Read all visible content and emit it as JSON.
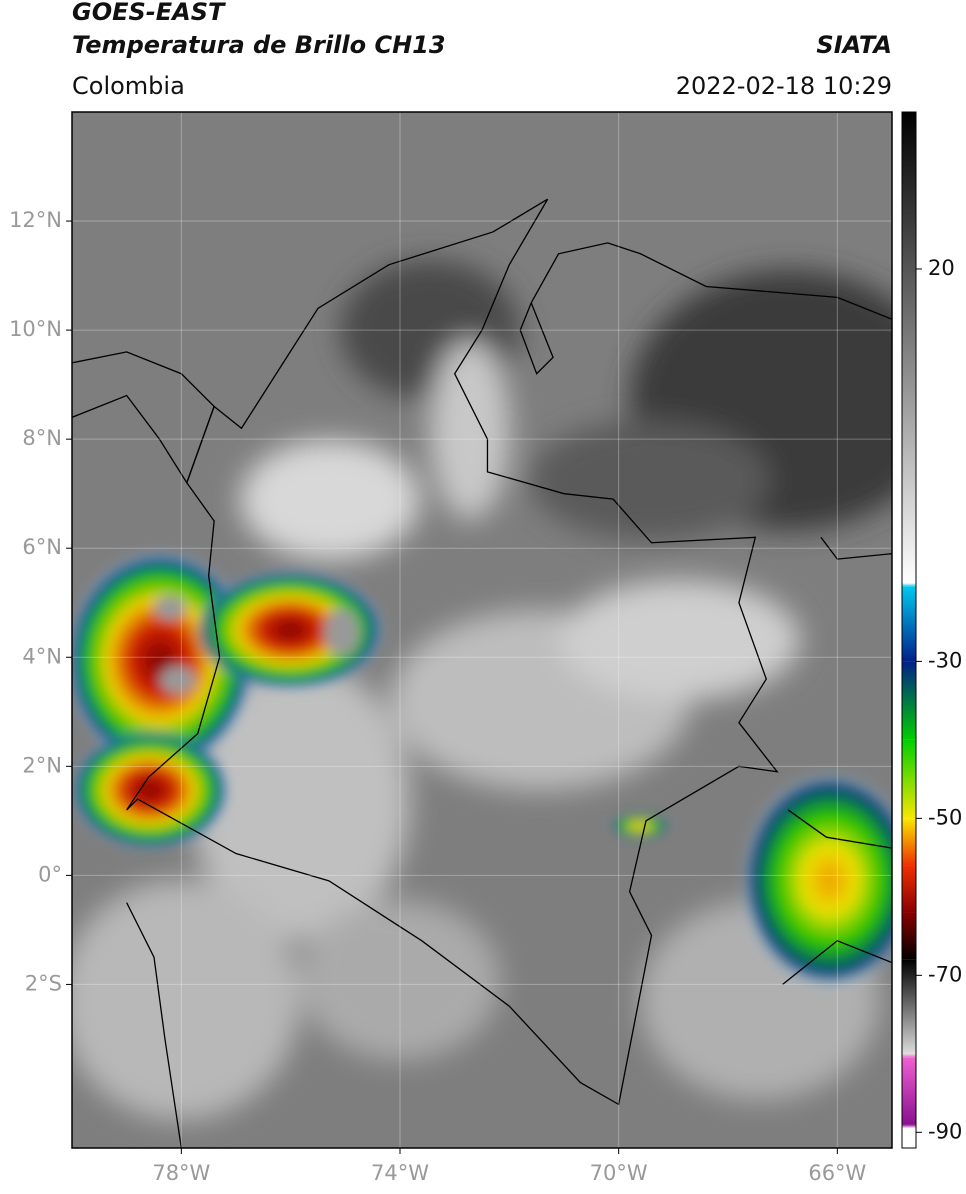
{
  "header": {
    "title_line1": "GOES-EAST",
    "title_line2": "Temperatura de Brillo CH13",
    "region": "Colombia",
    "source": "SIATA",
    "datetime": "2022-02-18 10:29"
  },
  "map": {
    "xlim": [
      -80,
      -65
    ],
    "ylim": [
      -5,
      14
    ],
    "xticks": [
      {
        "value": -78,
        "label": "78°W"
      },
      {
        "value": -74,
        "label": "74°W"
      },
      {
        "value": -70,
        "label": "70°W"
      },
      {
        "value": -66,
        "label": "66°W"
      }
    ],
    "yticks": [
      {
        "value": 12,
        "label": "12°N"
      },
      {
        "value": 10,
        "label": "10°N"
      },
      {
        "value": 8,
        "label": "8°N"
      },
      {
        "value": 6,
        "label": "6°N"
      },
      {
        "value": 4,
        "label": "4°N"
      },
      {
        "value": 2,
        "label": "2°N"
      },
      {
        "value": 0,
        "label": "0°"
      },
      {
        "value": -2,
        "label": "2°S"
      }
    ],
    "grid": true
  },
  "colorbar": {
    "clim": [
      -92,
      40
    ],
    "ticks": [
      20,
      -30,
      -50,
      -70,
      -90
    ],
    "colormap": [
      {
        "value": 40,
        "color": "#000000"
      },
      {
        "value": -20,
        "color": "#ffffff"
      },
      {
        "value": -20.5,
        "color": "#00c8f0"
      },
      {
        "value": -30,
        "color": "#00208a"
      },
      {
        "value": -40,
        "color": "#00d000"
      },
      {
        "value": -50,
        "color": "#f8e800"
      },
      {
        "value": -56,
        "color": "#f03000"
      },
      {
        "value": -62,
        "color": "#8a0000"
      },
      {
        "value": -68,
        "color": "#000000"
      },
      {
        "value": -80,
        "color": "#dddddd"
      },
      {
        "value": -80.5,
        "color": "#f060d0"
      },
      {
        "value": -89,
        "color": "#8a1090"
      },
      {
        "value": -89.5,
        "color": "#ffffff"
      },
      {
        "value": -92,
        "color": "#ffffff"
      }
    ]
  }
}
